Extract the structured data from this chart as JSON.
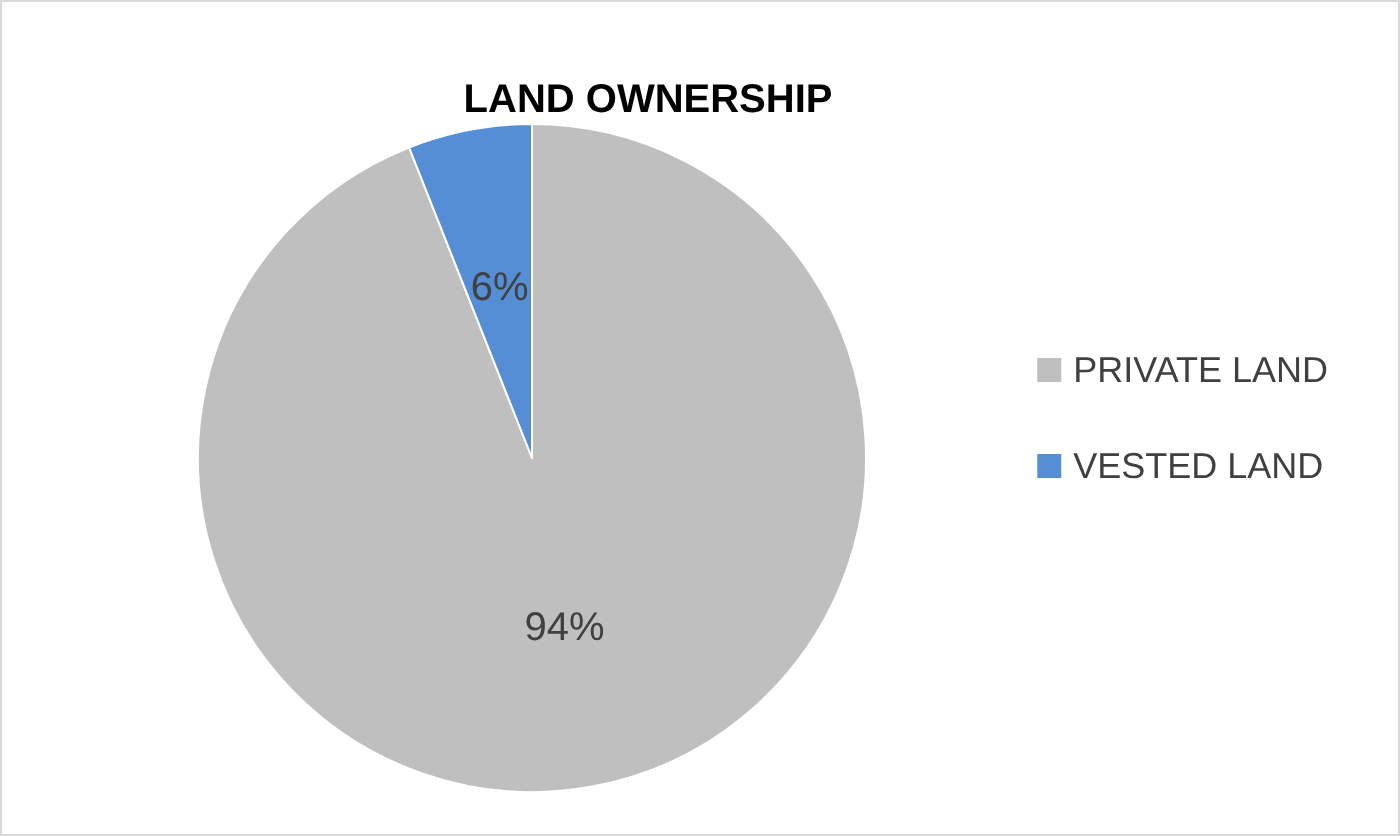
{
  "chart_data": {
    "type": "pie",
    "title": "LAND OWNERSHIP",
    "categories": [
      "PRIVATE LAND",
      "VESTED LAND"
    ],
    "values": [
      94,
      6
    ],
    "colors": [
      "#bfbfbf",
      "#558ed5"
    ],
    "value_labels": [
      "94%",
      "6%"
    ],
    "legend": "right"
  }
}
